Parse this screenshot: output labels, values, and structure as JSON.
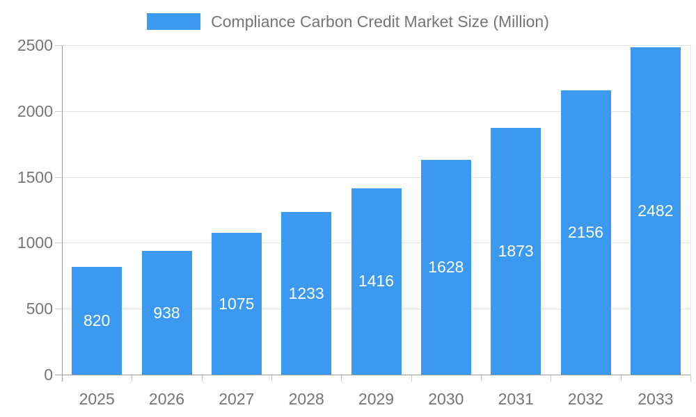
{
  "chart_data": {
    "type": "bar",
    "title": "Compliance Carbon Credit Market Size (Million)",
    "legend": {
      "position": "top",
      "entries": [
        "Compliance Carbon Credit Market Size (Million)"
      ]
    },
    "categories": [
      "2025",
      "2026",
      "2027",
      "2028",
      "2029",
      "2030",
      "2031",
      "2032",
      "2033"
    ],
    "series": [
      {
        "name": "Compliance Carbon Credit Market Size (Million)",
        "values": [
          820,
          938,
          1075,
          1233,
          1416,
          1628,
          1873,
          2156,
          2482
        ]
      }
    ],
    "data_labels": [
      "820",
      "938",
      "1075",
      "1233",
      "1416",
      "1628",
      "1873",
      "2156",
      "2482"
    ],
    "xlabel": "",
    "ylabel": "",
    "ylim": [
      0,
      2500
    ],
    "yticks": [
      0,
      500,
      1000,
      1500,
      2000,
      2500
    ],
    "grid": true,
    "colors": {
      "bar": "#3b99ef",
      "bar_value_text": "#ffffff",
      "axis_line": "#999999",
      "gridline": "#e3e3e3",
      "tick": "#cccccc",
      "text": "#757575"
    }
  }
}
